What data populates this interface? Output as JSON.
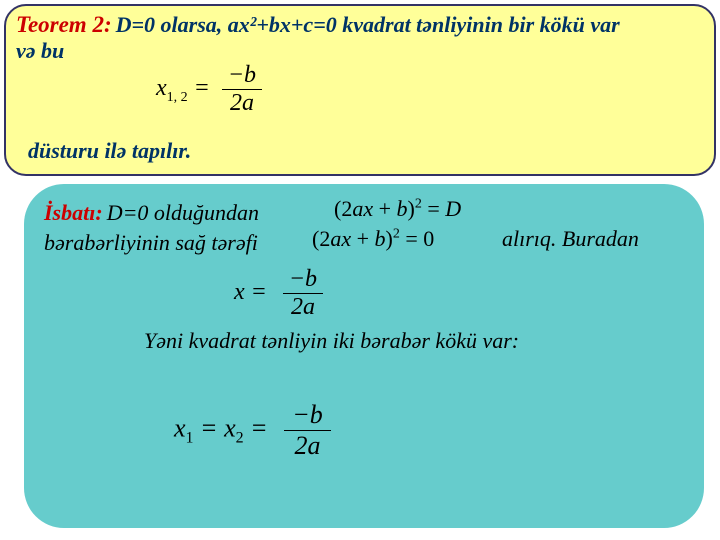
{
  "theorem": {
    "title": "Teorem 2:",
    "title_color": "#cc0000",
    "line1": " D=0 olarsa, ax²+bx+c=0 kvadrat tənliyinin bir kökü var",
    "line2": "və bu",
    "text_color": "#003366",
    "formula": {
      "lhs": "x",
      "sub": "1, 2",
      "eq": " = ",
      "num": "−b",
      "den": "2a"
    },
    "bottom": "düsturu ilə tapılır.",
    "bg": "#ffff99",
    "border": "#333366"
  },
  "proof": {
    "title": "İsbatı:",
    "title_color": "#cc0000",
    "text1": "D=0 olduğundan",
    "text2": "bərabərliyinin sağ tərəfi",
    "eq1": "(2ax + b)² = D",
    "eq2": "(2ax + b)² = 0",
    "after_eq2": "alırıq. Buradan",
    "formula2": {
      "lhs": "x",
      "eq": "  = ",
      "num": "−b",
      "den": "2a"
    },
    "line3": "Yəni kvadrat tənliyin iki bərabər kökü var:",
    "formula3": {
      "x1": "x",
      "s1": "1",
      "eq1": " = ",
      "x2": "x",
      "s2": "2",
      "eq2": " = ",
      "num": "−b",
      "den": "2a"
    },
    "bg": "#66cccc"
  }
}
